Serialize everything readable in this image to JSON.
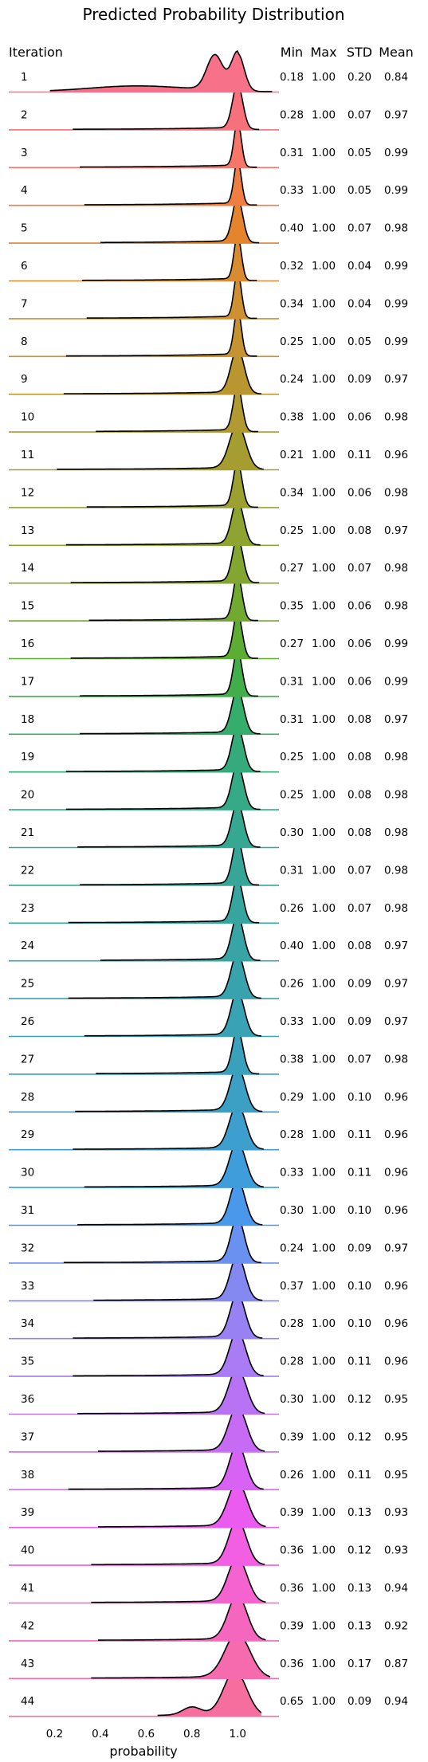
{
  "chart_data": {
    "type": "ridgeline",
    "title": "Predicted Probability Distribution",
    "xlabel": "probability",
    "xlim": [
      0.0,
      1.18
    ],
    "xticks": [
      "0.2",
      "0.4",
      "0.6",
      "0.8",
      "1.0"
    ],
    "xtick_values": [
      0.2,
      0.4,
      0.6,
      0.8,
      1.0
    ],
    "row_header": "Iteration",
    "column_headers": [
      "Min",
      "Max",
      "STD",
      "Mean"
    ],
    "columns": [
      "min",
      "max",
      "std",
      "mean"
    ],
    "rows": [
      {
        "label": "1",
        "min": "0.18",
        "max": "1.00",
        "std": "0.20",
        "mean": "0.84",
        "color": "#f77189"
      },
      {
        "label": "2",
        "min": "0.28",
        "max": "1.00",
        "std": "0.07",
        "mean": "0.97",
        "color": "#f7717c"
      },
      {
        "label": "3",
        "min": "0.31",
        "max": "1.00",
        "std": "0.05",
        "mean": "0.99",
        "color": "#f7766a"
      },
      {
        "label": "4",
        "min": "0.33",
        "max": "1.00",
        "std": "0.05",
        "mean": "0.99",
        "color": "#f07e43"
      },
      {
        "label": "5",
        "min": "0.40",
        "max": "1.00",
        "std": "0.07",
        "mean": "0.98",
        "color": "#e4842d"
      },
      {
        "label": "6",
        "min": "0.32",
        "max": "1.00",
        "std": "0.04",
        "mean": "0.99",
        "color": "#d98b31"
      },
      {
        "label": "7",
        "min": "0.34",
        "max": "1.00",
        "std": "0.04",
        "mean": "0.99",
        "color": "#ce9032"
      },
      {
        "label": "8",
        "min": "0.25",
        "max": "1.00",
        "std": "0.05",
        "mean": "0.99",
        "color": "#c59332"
      },
      {
        "label": "9",
        "min": "0.24",
        "max": "1.00",
        "std": "0.09",
        "mean": "0.97",
        "color": "#ba9631"
      },
      {
        "label": "10",
        "min": "0.38",
        "max": "1.00",
        "std": "0.06",
        "mean": "0.98",
        "color": "#b09a31"
      },
      {
        "label": "11",
        "min": "0.21",
        "max": "1.00",
        "std": "0.11",
        "mean": "0.96",
        "color": "#a69d31"
      },
      {
        "label": "12",
        "min": "0.34",
        "max": "1.00",
        "std": "0.06",
        "mean": "0.98",
        "color": "#9ba031"
      },
      {
        "label": "13",
        "min": "0.25",
        "max": "1.00",
        "std": "0.08",
        "mean": "0.97",
        "color": "#8fa331"
      },
      {
        "label": "14",
        "min": "0.27",
        "max": "1.00",
        "std": "0.07",
        "mean": "0.98",
        "color": "#82a631"
      },
      {
        "label": "15",
        "min": "0.35",
        "max": "1.00",
        "std": "0.06",
        "mean": "0.98",
        "color": "#72a931"
      },
      {
        "label": "16",
        "min": "0.27",
        "max": "1.00",
        "std": "0.06",
        "mean": "0.99",
        "color": "#5cad31"
      },
      {
        "label": "17",
        "min": "0.31",
        "max": "1.00",
        "std": "0.06",
        "mean": "0.99",
        "color": "#41ae4b"
      },
      {
        "label": "18",
        "min": "0.31",
        "max": "1.00",
        "std": "0.08",
        "mean": "0.97",
        "color": "#35ad6b"
      },
      {
        "label": "19",
        "min": "0.25",
        "max": "1.00",
        "std": "0.08",
        "mean": "0.98",
        "color": "#35ab7c"
      },
      {
        "label": "20",
        "min": "0.25",
        "max": "1.00",
        "std": "0.08",
        "mean": "0.98",
        "color": "#36a987"
      },
      {
        "label": "21",
        "min": "0.30",
        "max": "1.00",
        "std": "0.08",
        "mean": "0.98",
        "color": "#36a790"
      },
      {
        "label": "22",
        "min": "0.31",
        "max": "1.00",
        "std": "0.07",
        "mean": "0.98",
        "color": "#37a698"
      },
      {
        "label": "23",
        "min": "0.26",
        "max": "1.00",
        "std": "0.07",
        "mean": "0.98",
        "color": "#37a59f"
      },
      {
        "label": "24",
        "min": "0.40",
        "max": "1.00",
        "std": "0.08",
        "mean": "0.97",
        "color": "#38a4a6"
      },
      {
        "label": "25",
        "min": "0.26",
        "max": "1.00",
        "std": "0.09",
        "mean": "0.97",
        "color": "#38a3ad"
      },
      {
        "label": "26",
        "min": "0.33",
        "max": "1.00",
        "std": "0.09",
        "mean": "0.97",
        "color": "#39a2b4"
      },
      {
        "label": "27",
        "min": "0.38",
        "max": "1.00",
        "std": "0.07",
        "mean": "0.98",
        "color": "#3aa1bc"
      },
      {
        "label": "28",
        "min": "0.29",
        "max": "1.00",
        "std": "0.10",
        "mean": "0.96",
        "color": "#3ba0c4"
      },
      {
        "label": "29",
        "min": "0.28",
        "max": "1.00",
        "std": "0.11",
        "mean": "0.96",
        "color": "#3c9fcd"
      },
      {
        "label": "30",
        "min": "0.33",
        "max": "1.00",
        "std": "0.11",
        "mean": "0.96",
        "color": "#3f9ddb"
      },
      {
        "label": "31",
        "min": "0.30",
        "max": "1.00",
        "std": "0.10",
        "mean": "0.96",
        "color": "#4a98ec"
      },
      {
        "label": "32",
        "min": "0.24",
        "max": "1.00",
        "std": "0.09",
        "mean": "0.97",
        "color": "#6b91f0"
      },
      {
        "label": "33",
        "min": "0.37",
        "max": "1.00",
        "std": "0.10",
        "mean": "0.96",
        "color": "#8489f2"
      },
      {
        "label": "34",
        "min": "0.28",
        "max": "1.00",
        "std": "0.10",
        "mean": "0.96",
        "color": "#9882f3"
      },
      {
        "label": "35",
        "min": "0.28",
        "max": "1.00",
        "std": "0.11",
        "mean": "0.96",
        "color": "#a97bf4"
      },
      {
        "label": "36",
        "min": "0.30",
        "max": "1.00",
        "std": "0.12",
        "mean": "0.95",
        "color": "#b873f4"
      },
      {
        "label": "37",
        "min": "0.39",
        "max": "1.00",
        "std": "0.12",
        "mean": "0.95",
        "color": "#c86bf4"
      },
      {
        "label": "38",
        "min": "0.26",
        "max": "1.00",
        "std": "0.11",
        "mean": "0.95",
        "color": "#d862f3"
      },
      {
        "label": "39",
        "min": "0.39",
        "max": "1.00",
        "std": "0.13",
        "mean": "0.93",
        "color": "#ea5cef"
      },
      {
        "label": "40",
        "min": "0.36",
        "max": "1.00",
        "std": "0.12",
        "mean": "0.93",
        "color": "#f25fe2"
      },
      {
        "label": "41",
        "min": "0.36",
        "max": "1.00",
        "std": "0.13",
        "mean": "0.94",
        "color": "#f463cf"
      },
      {
        "label": "42",
        "min": "0.39",
        "max": "1.00",
        "std": "0.13",
        "mean": "0.92",
        "color": "#f567be"
      },
      {
        "label": "43",
        "min": "0.36",
        "max": "1.00",
        "std": "0.17",
        "mean": "0.87",
        "color": "#f66bae"
      },
      {
        "label": "44",
        "min": "0.65",
        "max": "1.00",
        "std": "0.09",
        "mean": "0.94",
        "color": "#f66e9e"
      }
    ]
  }
}
